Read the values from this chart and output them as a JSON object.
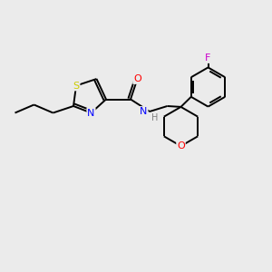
{
  "bg_color": "#ebebeb",
  "S_color": "#cccc00",
  "N_color": "#0000ff",
  "O_color": "#ff0000",
  "F_color": "#cc00cc",
  "C_color": "#000000",
  "H_color": "#808080",
  "lw": 1.4,
  "fs": 7.5,
  "fig_size": [
    3.0,
    3.0
  ],
  "dpi": 100,
  "xlim": [
    0,
    10
  ],
  "ylim": [
    0,
    10
  ]
}
